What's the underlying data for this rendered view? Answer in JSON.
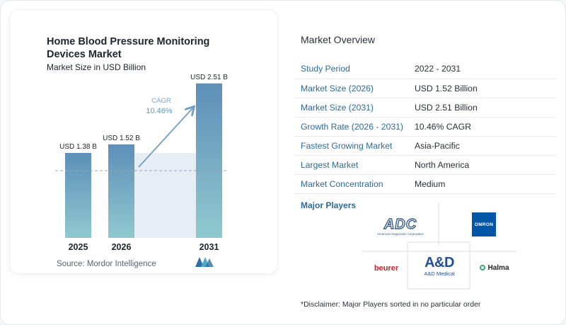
{
  "chart": {
    "title": "Home Blood Pressure Monitoring Devices Market",
    "subtitle": "Market Size in USD Billion",
    "cagr_label": "CAGR",
    "cagr_value": "10.46%",
    "source": "Source:  Mordor Intelligence"
  },
  "chart_data": {
    "type": "bar",
    "title": "Home Blood Pressure Monitoring Devices Market",
    "subtitle": "Market Size in USD Billion",
    "categories": [
      "2025",
      "2026",
      "2031"
    ],
    "values": [
      1.38,
      1.52,
      2.51
    ],
    "data_labels": [
      "USD 1.38 B",
      "USD 1.52 B",
      "USD 2.51 B"
    ],
    "ylim": [
      0,
      2.6
    ],
    "grid": false,
    "annotation": {
      "text": "CAGR 10.46%",
      "from": "2026",
      "to": "2031"
    },
    "colors": {
      "bar_top": "#5d8fb8",
      "bar_bottom": "#8fc9cf",
      "gap_fill": "#e6edf5",
      "arrow": "#6f9ec4"
    }
  },
  "overview": {
    "title": "Market Overview",
    "rows": [
      {
        "key": "Study Period",
        "value": "2022 - 2031"
      },
      {
        "key": "Market Size (2026)",
        "value": "USD 1.52 Billion"
      },
      {
        "key": "Market Size (2031)",
        "value": "USD 2.51 Billion"
      },
      {
        "key": "Growth Rate (2026 - 2031)",
        "value": "10.46% CAGR"
      },
      {
        "key": "Fastest Growing Market",
        "value": "Asia-Pacific"
      },
      {
        "key": "Largest Market",
        "value": "North America"
      },
      {
        "key": "Market Concentration",
        "value": "Medium"
      }
    ]
  },
  "players": {
    "title": "Major Players",
    "adc": {
      "name": "ADC",
      "sub": "American Diagnostic Corporation"
    },
    "omron": {
      "name": "OMRON"
    },
    "beurer": {
      "name": "beurer"
    },
    "and": {
      "name": "A&D",
      "sub": "A&D Medical"
    },
    "halma": {
      "name": "Halma"
    }
  },
  "disclaimer": "*Disclaimer: Major Players sorted in no particular order",
  "colors": {
    "accent": "#2d6b9a",
    "key_text": "#2d6b9a"
  }
}
